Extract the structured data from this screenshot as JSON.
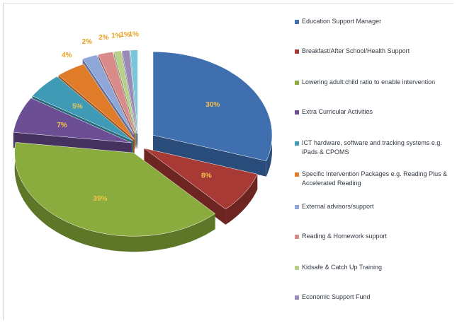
{
  "chart_data": {
    "type": "pie",
    "style": "3d-exploded",
    "legend_position": "right",
    "slices": [
      {
        "label": "Education Support Manager",
        "value": 30,
        "value_label": "30%",
        "color": "#3f6fae",
        "dark": "#2a4c7a"
      },
      {
        "label": "Breakfast/After School/Health Support",
        "value": 8,
        "value_label": "8%",
        "color": "#a83a35",
        "dark": "#6e2421"
      },
      {
        "label": "Lowering adult:child ratio to enable intervention",
        "value": 39,
        "value_label": "39%",
        "color": "#8aab3d",
        "dark": "#5e7627"
      },
      {
        "label": "Extra Curricular Activities",
        "value": 7,
        "value_label": "7%",
        "color": "#6b4e93",
        "dark": "#46325f"
      },
      {
        "label": "ICT hardware, software and tracking systems e.g. iPads & CPOMS",
        "value": 5,
        "value_label": "5%",
        "color": "#3f9bb5",
        "dark": "#296a7c"
      },
      {
        "label": "Specific Intervention Packages e.g. Reading Plus & Accelerated Reading",
        "value": 4,
        "value_label": "4%",
        "color": "#e07b2a",
        "dark": "#99521a"
      },
      {
        "label": "External advisors/support",
        "value": 2,
        "value_label": "2%",
        "color": "#8ea6d8",
        "dark": "#5f7099"
      },
      {
        "label": "Reading & Homework support",
        "value": 2,
        "value_label": "2%",
        "color": "#d98a8a",
        "dark": "#9a5e5e"
      },
      {
        "label": "Kidsafe & Catch Up Training",
        "value": 1,
        "value_label": "1%",
        "color": "#b9d08a",
        "dark": "#82935f"
      },
      {
        "label": "Economic Support Fund",
        "value": 1,
        "value_label": "1%",
        "color": "#9a8ab8",
        "dark": "#6c6082"
      },
      {
        "label": "",
        "value": 1,
        "value_label": "1%",
        "color": "#78c6da",
        "dark": "#508a99"
      }
    ]
  }
}
